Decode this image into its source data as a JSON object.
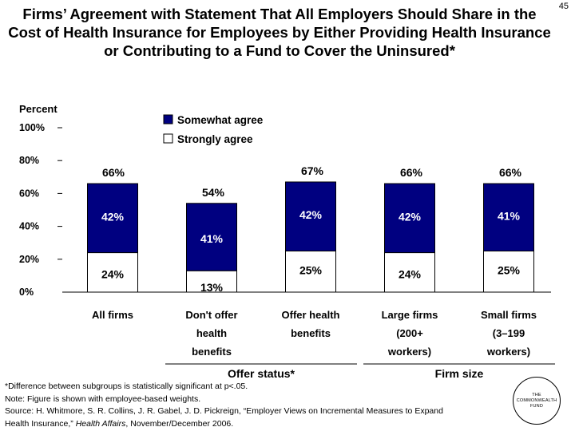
{
  "slide": {
    "title": "Firms’ Agreement with Statement That All Employers Should Share in the Cost of Health Insurance for Employees by Either Providing Health Insurance or Contributing to a Fund to Cover the Uninsured*",
    "number": "45"
  },
  "chart_data": {
    "type": "bar",
    "stacked": true,
    "ylabel": "Percent",
    "ylim": [
      0,
      100
    ],
    "yticks": [
      "0%",
      "20%",
      "40%",
      "60%",
      "80%",
      "100%"
    ],
    "categories": [
      [
        "All firms"
      ],
      [
        "Don't offer",
        "health",
        "benefits"
      ],
      [
        "Offer health",
        "benefits"
      ],
      [
        "Large firms",
        "(200+",
        "workers)"
      ],
      [
        "Small firms",
        "(3–199",
        "workers)"
      ]
    ],
    "series": [
      {
        "name": "Strongly agree",
        "values": [
          24,
          13,
          25,
          24,
          25
        ],
        "labels": [
          "24%",
          "13%",
          "25%",
          "24%",
          "25%"
        ],
        "color": "#ffffff"
      },
      {
        "name": "Somewhat agree",
        "values": [
          42,
          41,
          42,
          42,
          41
        ],
        "labels": [
          "42%",
          "41%",
          "42%",
          "42%",
          "41%"
        ],
        "color": "#000080"
      }
    ],
    "totals": {
      "values": [
        66,
        54,
        67,
        66,
        66
      ],
      "labels": [
        "66%",
        "54%",
        "67%",
        "66%",
        "66%"
      ]
    },
    "legend": [
      {
        "name": "Somewhat agree",
        "color": "#000080"
      },
      {
        "name": "Strongly agree",
        "color": "#ffffff"
      }
    ],
    "legend_position": "top-center",
    "groups": [
      {
        "label": "Offer status*",
        "categories": [
          1,
          2
        ]
      },
      {
        "label": "Firm size",
        "categories": [
          3,
          4
        ]
      }
    ]
  },
  "footnotes": {
    "significance": "*Difference between subgroups is statistically significant at p<.05.",
    "note": "Note: Figure is shown with employee-based weights.",
    "source_line1": "Source: H. Whitmore, S. R. Collins, J. R. Gabel, J. D. Pickreign, “Employer Views on Incremental Measures to Expand",
    "source_line2a": "Health Insurance,” ",
    "source_line2_journal": "Health Affairs",
    "source_line2b": ", November/December 2006."
  },
  "logo": {
    "line1": "THE",
    "line2": "COMMONWEALTH",
    "line3": "FUND"
  }
}
